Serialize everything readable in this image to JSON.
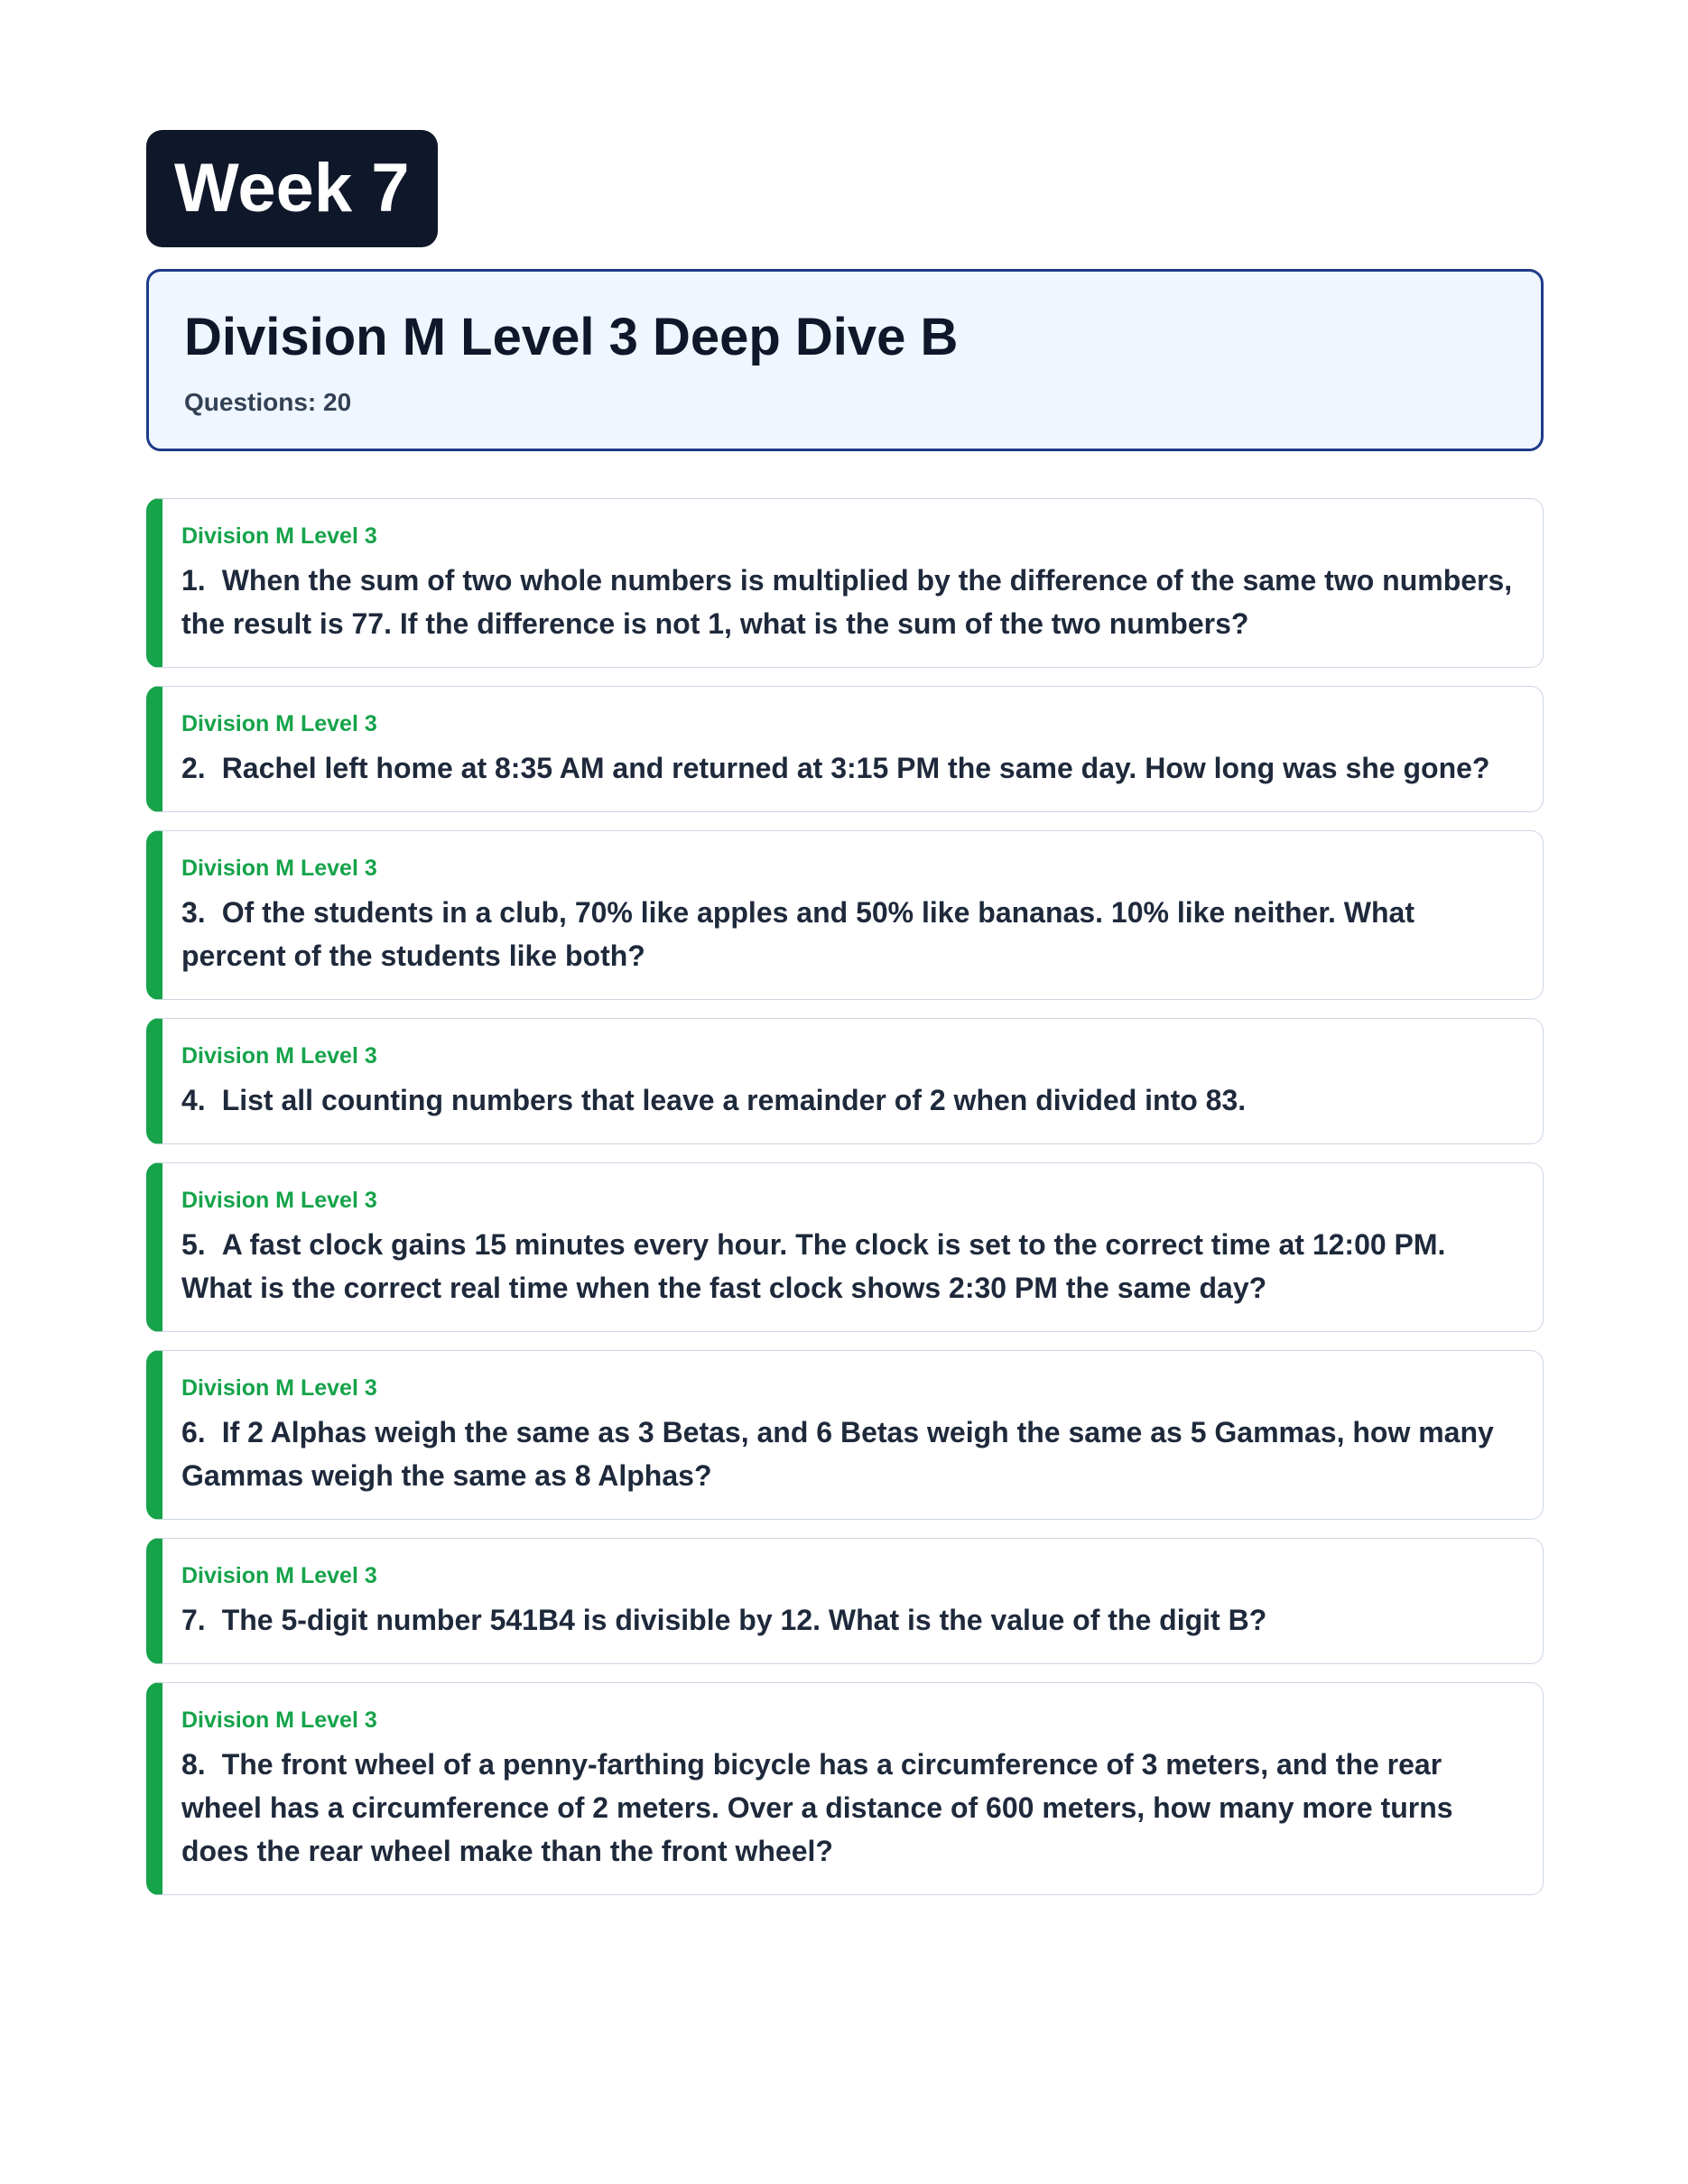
{
  "badge": "Week 7",
  "header": {
    "title": "Division M Level 3 Deep Dive B",
    "questions_count": "Questions: 20"
  },
  "accent_color": "#16a34a",
  "questions": [
    {
      "label": "Division M Level 3",
      "number": "1.",
      "text": "When the sum of two whole numbers is multiplied by the difference of the same two numbers, the result is 77. If the difference is not 1, what is the sum of the two numbers?"
    },
    {
      "label": "Division M Level 3",
      "number": "2.",
      "text": "Rachel left home at 8:35 AM and returned at 3:15 PM the same day. How long was she gone?"
    },
    {
      "label": "Division M Level 3",
      "number": "3.",
      "text": "Of the students in a club, 70% like apples and 50% like bananas. 10% like neither. What percent of the students like both?"
    },
    {
      "label": "Division M Level 3",
      "number": "4.",
      "text": "List all counting numbers that leave a remainder of 2 when divided into 83."
    },
    {
      "label": "Division M Level 3",
      "number": "5.",
      "text": "A fast clock gains 15 minutes every hour. The clock is set to the correct time at 12:00 PM. What is the correct real time when the fast clock shows 2:30 PM the same day?"
    },
    {
      "label": "Division M Level 3",
      "number": "6.",
      "text": "If 2 Alphas weigh the same as 3 Betas, and 6 Betas weigh the same as 5 Gammas, how many Gammas weigh the same as 8 Alphas?"
    },
    {
      "label": "Division M Level 3",
      "number": "7.",
      "text": "The 5-digit number 541B4 is divisible by 12. What is the value of the digit B?"
    },
    {
      "label": "Division M Level 3",
      "number": "8.",
      "text": "The front wheel of a penny-farthing bicycle has a circumference of 3 meters, and the rear wheel has a circumference of 2 meters. Over a distance of 600 meters, how many more turns does the rear wheel make than the front wheel?"
    }
  ]
}
